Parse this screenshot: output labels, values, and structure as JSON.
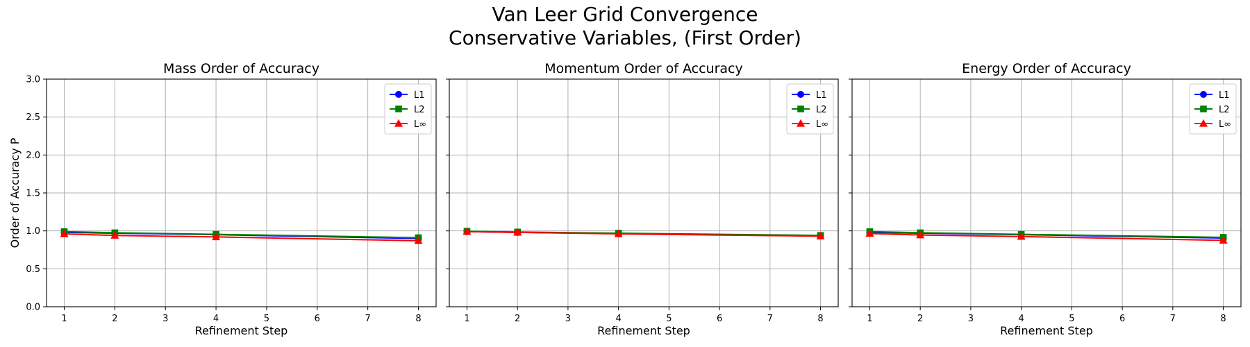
{
  "figure": {
    "title_line1": "Van Leer Grid Convergence",
    "title_line2": "Conservative Variables, (First Order)"
  },
  "chart_data": [
    {
      "type": "line",
      "title": "Mass Order of Accuracy",
      "xlabel": "Refinement Step",
      "ylabel": "Order of Accuracy P",
      "x": [
        1,
        2,
        4,
        8
      ],
      "xlim": [
        0.65,
        8.35
      ],
      "ylim": [
        0,
        3
      ],
      "xticks": [
        "1",
        "2",
        "3",
        "4",
        "5",
        "6",
        "7",
        "8"
      ],
      "yticks": [
        "0.0",
        "0.5",
        "1.0",
        "1.5",
        "2.0",
        "2.5",
        "3.0"
      ],
      "grid": true,
      "legend_position": "top-right",
      "series": [
        {
          "name": "L1",
          "color": "#0000ff",
          "marker": "circle",
          "values": [
            0.98,
            0.97,
            0.95,
            0.9
          ]
        },
        {
          "name": "L2",
          "color": "#008000",
          "marker": "square",
          "values": [
            0.99,
            0.975,
            0.955,
            0.91
          ]
        },
        {
          "name": "L∞",
          "color": "#ff0000",
          "marker": "triangle",
          "values": [
            0.96,
            0.94,
            0.92,
            0.87
          ]
        }
      ]
    },
    {
      "type": "line",
      "title": "Momentum Order of Accuracy",
      "xlabel": "Refinement Step",
      "ylabel": "",
      "x": [
        1,
        2,
        4,
        8
      ],
      "xlim": [
        0.65,
        8.35
      ],
      "ylim": [
        0,
        3
      ],
      "xticks": [
        "1",
        "2",
        "3",
        "4",
        "5",
        "6",
        "7",
        "8"
      ],
      "yticks": [
        "0.0",
        "0.5",
        "1.0",
        "1.5",
        "2.0",
        "2.5",
        "3.0"
      ],
      "grid": true,
      "legend_position": "top-right",
      "series": [
        {
          "name": "L1",
          "color": "#0000ff",
          "marker": "circle",
          "values": [
            0.99,
            0.98,
            0.965,
            0.935
          ]
        },
        {
          "name": "L2",
          "color": "#008000",
          "marker": "square",
          "values": [
            0.995,
            0.985,
            0.97,
            0.94
          ]
        },
        {
          "name": "L∞",
          "color": "#ff0000",
          "marker": "triangle",
          "values": [
            0.99,
            0.98,
            0.96,
            0.93
          ]
        }
      ]
    },
    {
      "type": "line",
      "title": "Energy Order of Accuracy",
      "xlabel": "Refinement Step",
      "ylabel": "",
      "x": [
        1,
        2,
        4,
        8
      ],
      "xlim": [
        0.65,
        8.35
      ],
      "ylim": [
        0,
        3
      ],
      "xticks": [
        "1",
        "2",
        "3",
        "4",
        "5",
        "6",
        "7",
        "8"
      ],
      "yticks": [
        "0.0",
        "0.5",
        "1.0",
        "1.5",
        "2.0",
        "2.5",
        "3.0"
      ],
      "grid": true,
      "legend_position": "top-right",
      "series": [
        {
          "name": "L1",
          "color": "#0000ff",
          "marker": "circle",
          "values": [
            0.98,
            0.97,
            0.95,
            0.905
          ]
        },
        {
          "name": "L2",
          "color": "#008000",
          "marker": "square",
          "values": [
            0.99,
            0.975,
            0.955,
            0.915
          ]
        },
        {
          "name": "L∞",
          "color": "#ff0000",
          "marker": "triangle",
          "values": [
            0.965,
            0.945,
            0.925,
            0.875
          ]
        }
      ]
    }
  ]
}
